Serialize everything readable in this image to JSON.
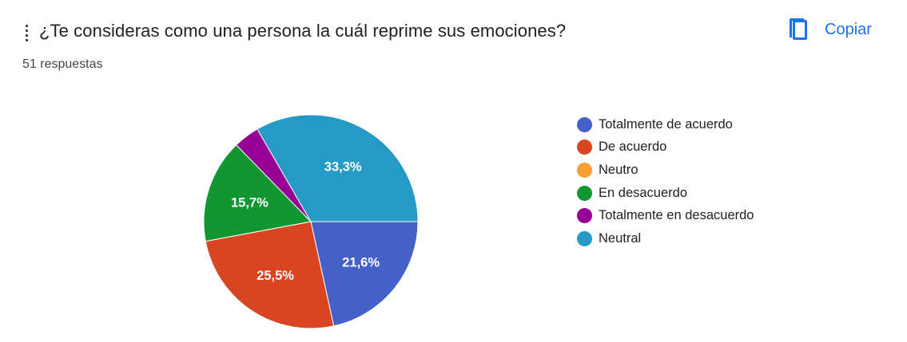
{
  "question": {
    "title": "¿Te consideras como una persona la cuál reprime sus emociones?",
    "response_count": "51 respuestas"
  },
  "toolbar": {
    "copy_label": "Copiar",
    "copy_icon": "copy-icon",
    "drag_icon": "drag-handle-icon"
  },
  "colors": {
    "accent": "#1a73e8"
  },
  "chart_data": {
    "type": "pie",
    "total": 51,
    "legend_position": "right",
    "slices": [
      {
        "label": "Totalmente de acuerdo",
        "value": 11,
        "percent_label": "21,6%",
        "color": "#4361c9"
      },
      {
        "label": "De acuerdo",
        "value": 13,
        "percent_label": "25,5%",
        "color": "#d94421"
      },
      {
        "label": "Neutro",
        "value": 0,
        "percent_label": "",
        "color": "#f5a031"
      },
      {
        "label": "En desacuerdo",
        "value": 8,
        "percent_label": "15,7%",
        "color": "#109732"
      },
      {
        "label": "Totalmente en desacuerdo",
        "value": 2,
        "percent_label": "",
        "color": "#960096"
      },
      {
        "label": "Neutral",
        "value": 17,
        "percent_label": "33,3%",
        "color": "#2799c7"
      }
    ]
  }
}
